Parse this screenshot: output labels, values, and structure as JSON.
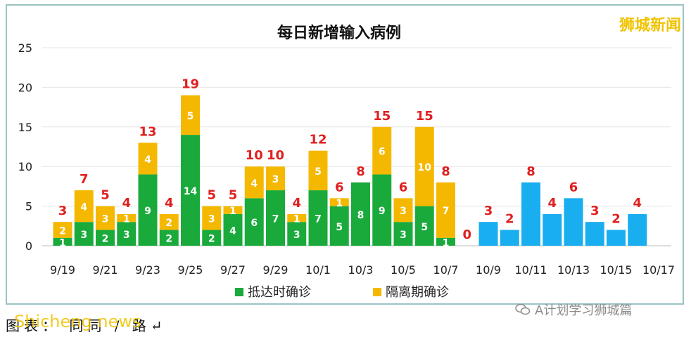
{
  "watermark": "狮城新闻",
  "footer": {
    "source": "图表：  同同 / 路↵",
    "overlay": "Shicheng news"
  },
  "wechat": {
    "label": "A计划学习狮城篇",
    "icon": "wechat-icon"
  },
  "colors": {
    "arrival": "#1aaa3c",
    "quarantine": "#f5b800",
    "future": "#18aef0",
    "total_label": "#e02020"
  },
  "chart_data": {
    "type": "bar",
    "title": "每日新增输入病例",
    "ylim": [
      0,
      25
    ],
    "yticks": [
      "0",
      "5",
      "10",
      "15",
      "20",
      "25"
    ],
    "xtick_labels": [
      "9/19",
      "9/21",
      "9/23",
      "9/25",
      "9/27",
      "9/29",
      "10/1",
      "10/3",
      "10/5",
      "10/7",
      "10/9",
      "10/11",
      "10/13",
      "10/15",
      "10/17"
    ],
    "legend": {
      "position": "bottom",
      "entries": [
        "抵达时确诊",
        "隔离期确诊"
      ]
    },
    "categories": [
      "9/19",
      "9/20",
      "9/21",
      "9/22",
      "9/23",
      "9/24",
      "9/25",
      "9/26",
      "9/27",
      "9/28",
      "9/29",
      "9/30",
      "10/1",
      "10/2",
      "10/3",
      "10/4",
      "10/5",
      "10/6",
      "10/7",
      "10/8",
      "10/9",
      "10/10",
      "10/11",
      "10/12",
      "10/13",
      "10/14",
      "10/15",
      "10/16"
    ],
    "series": [
      {
        "name": "抵达时确诊",
        "values": [
          1,
          3,
          2,
          3,
          9,
          2,
          14,
          2,
          4,
          6,
          7,
          3,
          7,
          5,
          8,
          9,
          3,
          5,
          1,
          0,
          null,
          null,
          null,
          null,
          null,
          null,
          null,
          null
        ]
      },
      {
        "name": "隔离期确诊",
        "values": [
          2,
          4,
          3,
          1,
          4,
          2,
          5,
          3,
          1,
          4,
          3,
          1,
          5,
          1,
          0,
          6,
          3,
          10,
          7,
          0,
          null,
          null,
          null,
          null,
          null,
          null,
          null,
          null
        ]
      },
      {
        "values": [
          null,
          null,
          null,
          null,
          null,
          null,
          null,
          null,
          null,
          null,
          null,
          null,
          null,
          null,
          null,
          null,
          null,
          null,
          null,
          null,
          3,
          2,
          8,
          4,
          6,
          3,
          2,
          4
        ]
      }
    ],
    "totals": [
      3,
      7,
      5,
      4,
      13,
      4,
      19,
      5,
      5,
      10,
      10,
      4,
      12,
      6,
      8,
      15,
      6,
      15,
      8,
      0,
      3,
      2,
      8,
      4,
      6,
      3,
      2,
      4
    ],
    "green_labels": [
      "1",
      "3",
      "2",
      "3",
      "9",
      "2",
      "14",
      "2",
      "4",
      "6",
      "7",
      "3",
      "7",
      "5",
      "8",
      "9",
      "3",
      "5",
      "1",
      "",
      "",
      "",
      "",
      "",
      "",
      "",
      "",
      ""
    ],
    "yellow_labels": [
      "2",
      "4",
      "3",
      "1",
      "4",
      "2",
      "5",
      "3",
      "1",
      "4",
      "3",
      "1",
      "5",
      "1",
      "",
      "6",
      "3",
      "10",
      "7",
      "",
      "",
      "",
      "",
      "",
      "",
      "",
      "",
      ""
    ]
  }
}
